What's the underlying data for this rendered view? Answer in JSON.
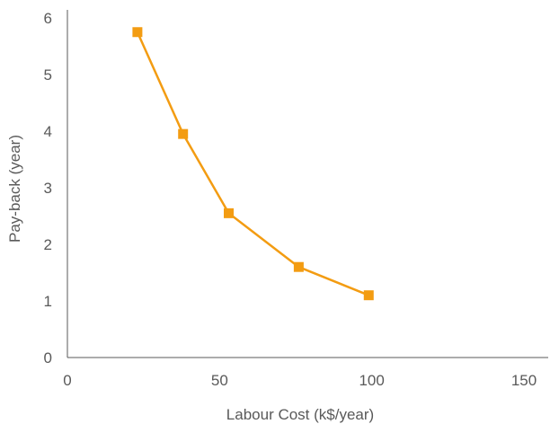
{
  "chart_data": {
    "type": "line",
    "title": "",
    "xlabel": "Labour Cost (k$/year)",
    "ylabel": "Pay-back (year)",
    "xlim": [
      0,
      150
    ],
    "ylim": [
      0,
      6
    ],
    "x_ticks": [
      "0",
      "50",
      "100",
      "150"
    ],
    "y_ticks": [
      "0",
      "1",
      "2",
      "3",
      "4",
      "5",
      "6"
    ],
    "grid": false,
    "legend": "none",
    "series": [
      {
        "color": "#F39C12",
        "marker": "square",
        "points": [
          {
            "x": 23,
            "y": 5.75
          },
          {
            "x": 38,
            "y": 3.95
          },
          {
            "x": 53,
            "y": 2.55
          },
          {
            "x": 76,
            "y": 1.6
          },
          {
            "x": 99,
            "y": 1.1
          }
        ]
      }
    ]
  }
}
